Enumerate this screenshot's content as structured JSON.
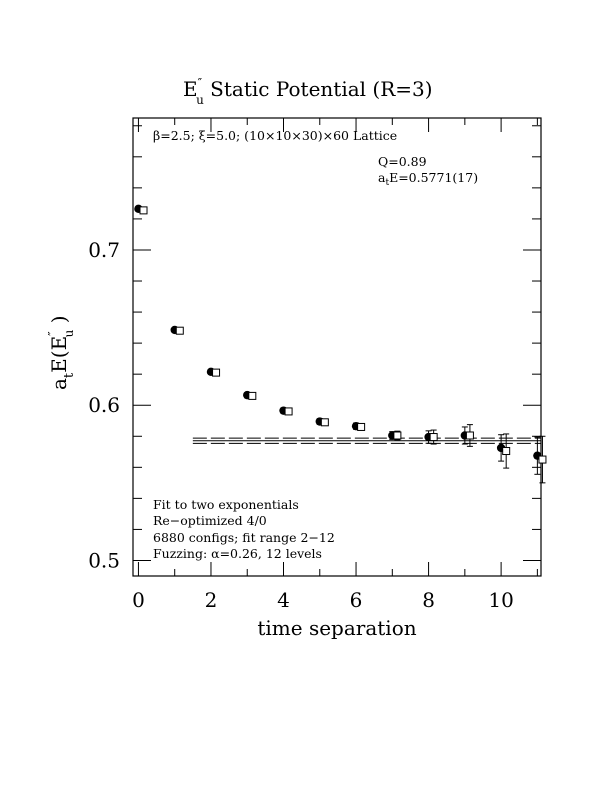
{
  "chart_data": {
    "type": "scatter",
    "title": "E″u  Static Potential (R=3)",
    "title_main": "E",
    "title_sup": "″",
    "title_sub": "u",
    "title_rest": "  Static Potential (R=3)",
    "xlabel": "time separation",
    "ylabel": "a_t E(E″_u )",
    "ylabel_parts": {
      "a": "a",
      "t": "t",
      "E": "E(E",
      "sup": "″",
      "sub": "u",
      "close": " )"
    },
    "xlim": [
      -0.15,
      11.1
    ],
    "ylim": [
      0.49,
      0.785
    ],
    "x_ticks": [
      0,
      2,
      4,
      6,
      8,
      10
    ],
    "y_ticks": [
      0.5,
      0.6,
      0.7
    ],
    "x_tick_labels": [
      "0",
      "2",
      "4",
      "6",
      "8",
      "10"
    ],
    "y_tick_labels": [
      "0.5",
      "0.6",
      "0.7"
    ],
    "lattice_info": "β=2.5; ξ=5.0; (10×10×30)×60 Lattice",
    "fit_quality": "Q=0.89",
    "fit_energy_label": "a",
    "fit_energy_sub": "t",
    "fit_energy_rest": "E=0.5771(17)",
    "notes": [
      "Fit to two exponentials",
      "Re−optimized 4/0",
      "6880 configs; fit range 2−12",
      "Fuzzing: α=0.26, 12 levels"
    ],
    "fit": {
      "value": 0.5771,
      "error": 0.0017,
      "t_start": 1.5,
      "t_end": 11.1
    },
    "series": [
      {
        "marker": "filled-circle",
        "points": [
          {
            "x": 0,
            "y": 0.7265,
            "err": 0.0008
          },
          {
            "x": 1,
            "y": 0.6485,
            "err": 0.001
          },
          {
            "x": 2,
            "y": 0.6215,
            "err": 0.001
          },
          {
            "x": 3,
            "y": 0.6065,
            "err": 0.0012
          },
          {
            "x": 4,
            "y": 0.5965,
            "err": 0.0015
          },
          {
            "x": 5,
            "y": 0.5895,
            "err": 0.0018
          },
          {
            "x": 6,
            "y": 0.5865,
            "err": 0.002
          },
          {
            "x": 7,
            "y": 0.5805,
            "err": 0.0025
          },
          {
            "x": 8,
            "y": 0.5795,
            "err": 0.004
          },
          {
            "x": 9,
            "y": 0.5805,
            "err": 0.0055
          },
          {
            "x": 10,
            "y": 0.5725,
            "err": 0.0085
          },
          {
            "x": 11,
            "y": 0.5675,
            "err": 0.012
          }
        ]
      },
      {
        "marker": "open-square",
        "points": [
          {
            "x": 0,
            "y": 0.7255,
            "err": 0.0008
          },
          {
            "x": 1,
            "y": 0.648,
            "err": 0.001
          },
          {
            "x": 2,
            "y": 0.621,
            "err": 0.001
          },
          {
            "x": 3,
            "y": 0.606,
            "err": 0.0012
          },
          {
            "x": 4,
            "y": 0.596,
            "err": 0.0015
          },
          {
            "x": 5,
            "y": 0.589,
            "err": 0.0018
          },
          {
            "x": 6,
            "y": 0.586,
            "err": 0.002
          },
          {
            "x": 7,
            "y": 0.5805,
            "err": 0.0028
          },
          {
            "x": 8,
            "y": 0.5795,
            "err": 0.0045
          },
          {
            "x": 9,
            "y": 0.5805,
            "err": 0.007
          },
          {
            "x": 10,
            "y": 0.5705,
            "err": 0.011
          },
          {
            "x": 11,
            "y": 0.565,
            "err": 0.015
          }
        ]
      }
    ]
  }
}
